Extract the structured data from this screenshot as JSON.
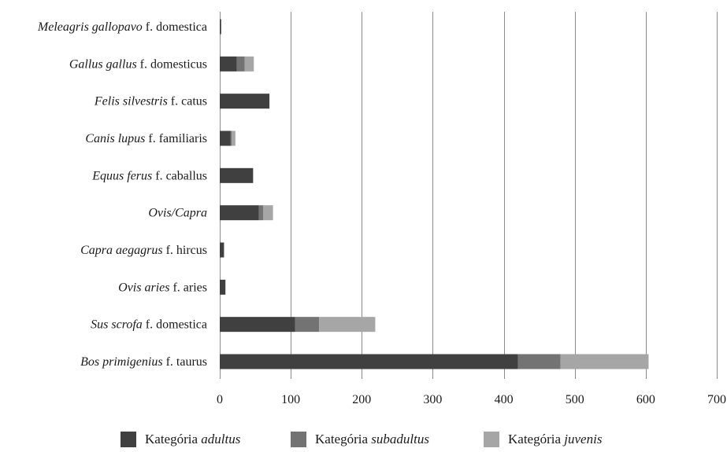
{
  "chart_data": {
    "type": "bar",
    "orientation": "horizontal",
    "stacked": true,
    "categories": [
      {
        "italic": "Bos primigenius",
        "rest": " f. taurus"
      },
      {
        "italic": "Sus scrofa",
        "rest": " f. domestica"
      },
      {
        "italic": "Ovis aries",
        "rest": " f. aries"
      },
      {
        "italic": "Capra aegagrus",
        "rest": " f. hircus"
      },
      {
        "italic": "Ovis/Capra",
        "rest": ""
      },
      {
        "italic": "Equus ferus",
        "rest": " f. caballus"
      },
      {
        "italic": "Canis lupus",
        "rest": " f. familiaris"
      },
      {
        "italic": "Felis silvestris",
        "rest": " f. catus"
      },
      {
        "italic": "Gallus gallus",
        "rest": " f. domesticus"
      },
      {
        "italic": "Meleagris gallopavo",
        "rest": " f. domestica"
      }
    ],
    "series": [
      {
        "name_plain": "Kategória ",
        "name_italic": "adultus",
        "color": "#404040",
        "values": [
          420,
          106,
          8,
          6,
          55,
          47,
          15,
          70,
          24,
          2
        ]
      },
      {
        "name_plain": "Kategória ",
        "name_italic": "subadultus",
        "color": "#737373",
        "values": [
          60,
          34,
          0,
          0,
          6,
          0,
          2,
          0,
          11,
          0
        ]
      },
      {
        "name_plain": "Kategória ",
        "name_italic": "juvenis",
        "color": "#a6a6a6",
        "values": [
          124,
          79,
          0,
          0,
          14,
          0,
          5,
          0,
          13,
          0
        ]
      }
    ],
    "xlim": [
      0,
      700
    ],
    "xticks": [
      0,
      100,
      200,
      300,
      400,
      500,
      600,
      700
    ],
    "grid": true,
    "legend_position": "bottom"
  }
}
